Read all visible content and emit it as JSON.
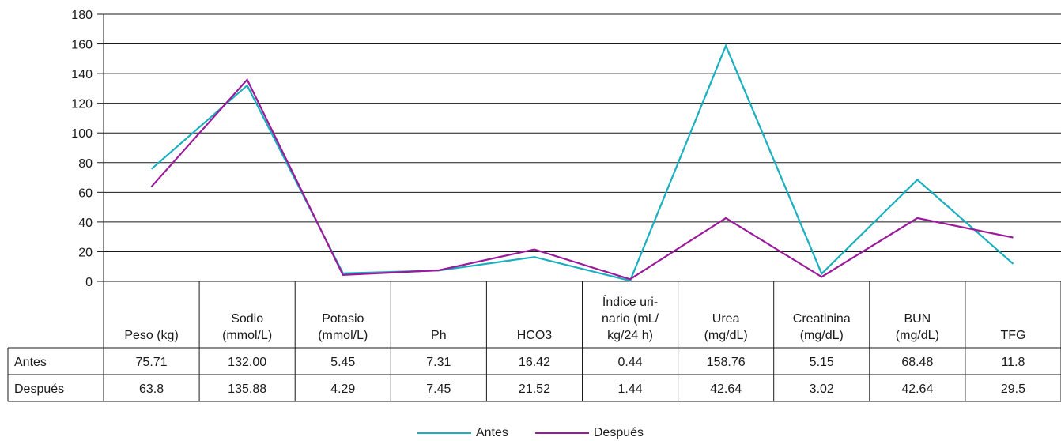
{
  "chart_data": {
    "type": "line",
    "categories": [
      [
        "Peso (kg)"
      ],
      [
        "Sodio",
        "(mmol/L)"
      ],
      [
        "Potasio",
        "(mmol/L)"
      ],
      [
        "Ph"
      ],
      [
        "HCO3"
      ],
      [
        "Índice uri-",
        "nario (mL/",
        "kg/24 h)"
      ],
      [
        "Urea",
        "(mg/dL)"
      ],
      [
        "Creatinina",
        "(mg/dL)"
      ],
      [
        "BUN",
        "(mg/dL)"
      ],
      [
        "TFG"
      ]
    ],
    "series": [
      {
        "name": "Antes",
        "color": "#1aafbf",
        "values": [
          75.71,
          132.0,
          5.45,
          7.31,
          16.42,
          0.44,
          158.76,
          5.15,
          68.48,
          11.8
        ],
        "labels": [
          "75.71",
          "132.00",
          "5.45",
          "7.31",
          "16.42",
          "0.44",
          "158.76",
          "5.15",
          "68.48",
          "11.8"
        ]
      },
      {
        "name": "Después",
        "color": "#9b1a9b",
        "values": [
          63.8,
          135.88,
          4.29,
          7.45,
          21.52,
          1.44,
          42.64,
          3.02,
          42.64,
          29.5
        ],
        "labels": [
          "63.8",
          "135.88",
          "4.29",
          "7.45",
          "21.52",
          "1.44",
          "42.64",
          "3.02",
          "42.64",
          "29.5"
        ]
      }
    ],
    "ylim": [
      0,
      180
    ],
    "yticks": [
      0,
      20,
      40,
      60,
      80,
      100,
      120,
      140,
      160,
      180
    ],
    "grid": true,
    "legend": "bottom-center",
    "data_table": true
  }
}
